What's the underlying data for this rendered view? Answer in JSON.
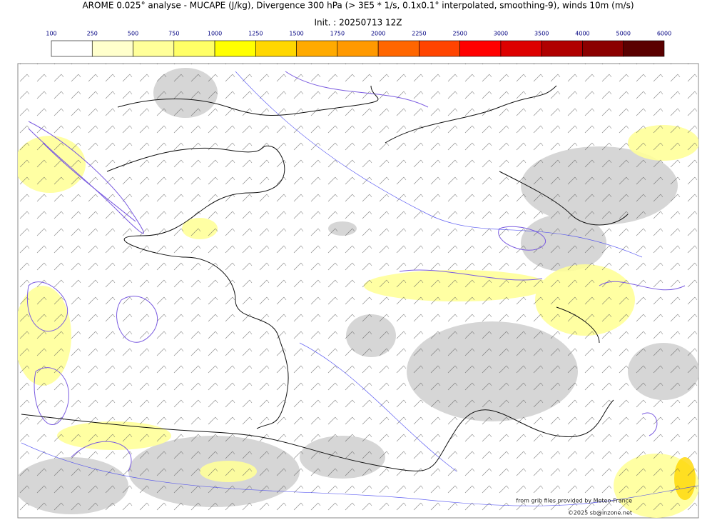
{
  "header": {
    "title": "AROME 0.025° analyse - MUCAPE (J/kg), Divergence 300 hPa (> 3E5 * 1/s, 0.1x0.1° interpolated, smoothing-9), winds 10m (m/s)",
    "init": "Init. : 20250713 12Z"
  },
  "colorbar": {
    "ticks": [
      "100",
      "250",
      "500",
      "750",
      "1000",
      "1250",
      "1500",
      "1750",
      "2000",
      "2250",
      "2500",
      "3000",
      "3500",
      "4000",
      "5000",
      "6000"
    ],
    "colors": [
      "#ffffff",
      "#ffffcc",
      "#ffff99",
      "#ffff66",
      "#ffff00",
      "#ffd700",
      "#ffaa00",
      "#ff9900",
      "#ff6600",
      "#ff4400",
      "#ff0000",
      "#dd0000",
      "#b00000",
      "#8b0000",
      "#5a0000"
    ]
  },
  "credits": {
    "source": "from grib files provided by Meteo-France",
    "copyright": "©2025 sb@inzone.net"
  }
}
